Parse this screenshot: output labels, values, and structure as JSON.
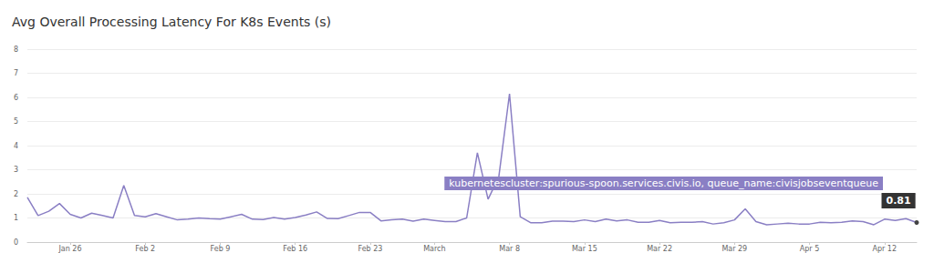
{
  "chart_data": {
    "type": "line",
    "title": "Avg Overall Processing Latency For K8s Events (s)",
    "categories": [
      null,
      null,
      null,
      null,
      "Jan 26",
      null,
      null,
      null,
      null,
      null,
      null,
      "Feb 2",
      null,
      null,
      null,
      null,
      null,
      null,
      "Feb 9",
      null,
      null,
      null,
      null,
      null,
      null,
      "Feb 16",
      null,
      null,
      null,
      null,
      null,
      null,
      "Feb 23",
      null,
      null,
      null,
      null,
      null,
      "March",
      null,
      null,
      null,
      null,
      null,
      null,
      "Mar 8",
      null,
      null,
      null,
      null,
      null,
      null,
      "Mar 15",
      null,
      null,
      null,
      null,
      null,
      null,
      "Mar 22",
      null,
      null,
      null,
      null,
      null,
      null,
      "Mar 29",
      null,
      null,
      null,
      null,
      null,
      null,
      "Apr 5",
      null,
      null,
      null,
      null,
      null,
      null,
      "Apr 12",
      null,
      null,
      null
    ],
    "series": [
      {
        "name": "kubernetescluster:spurious-spoon.services.civis.io, queue_name:civisjobseventqueue",
        "color": "#8a7fc4",
        "values": [
          1.85,
          1.1,
          1.28,
          1.6,
          1.15,
          1.0,
          1.2,
          1.1,
          1.0,
          2.35,
          1.1,
          1.05,
          1.18,
          1.05,
          0.92,
          0.95,
          1.0,
          0.97,
          0.95,
          1.05,
          1.15,
          0.95,
          0.93,
          1.02,
          0.95,
          1.02,
          1.12,
          1.25,
          0.98,
          0.97,
          1.1,
          1.23,
          1.23,
          0.88,
          0.92,
          0.95,
          0.87,
          0.95,
          0.9,
          0.85,
          0.85,
          1.0,
          3.7,
          1.78,
          2.7,
          6.15,
          1.05,
          0.8,
          0.8,
          0.87,
          0.87,
          0.85,
          0.92,
          0.85,
          0.95,
          0.88,
          0.92,
          0.82,
          0.82,
          0.9,
          0.8,
          0.82,
          0.82,
          0.85,
          0.75,
          0.8,
          0.92,
          1.38,
          0.85,
          0.72,
          0.75,
          0.78,
          0.75,
          0.75,
          0.82,
          0.8,
          0.82,
          0.88,
          0.85,
          0.72,
          0.95,
          0.9,
          0.97,
          0.81
        ]
      }
    ],
    "ylim": [
      0,
      8
    ],
    "yticks": [
      0,
      1,
      2,
      3,
      4,
      5,
      6,
      7,
      8
    ],
    "grid": true
  }
}
